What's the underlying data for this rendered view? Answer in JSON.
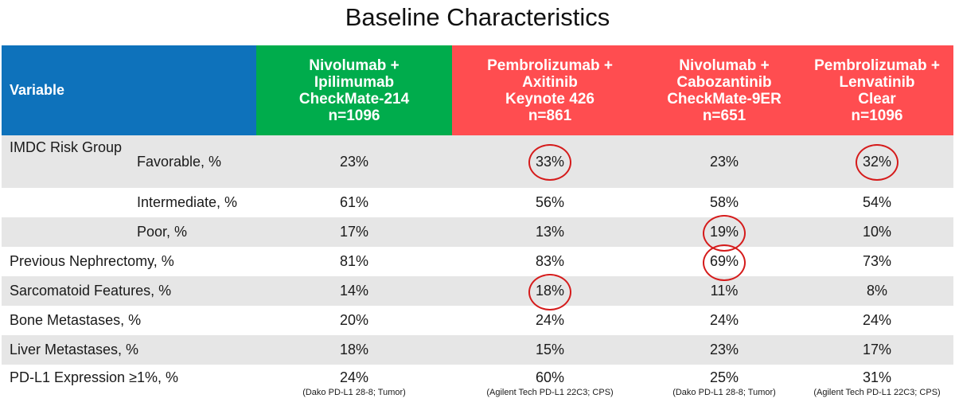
{
  "title": "Baseline Characteristics",
  "header": {
    "variable": "Variable",
    "columns": [
      {
        "line1": "Nivolumab +",
        "line2": "Ipilimumab",
        "line3": "CheckMate-214",
        "line4": "n=1096",
        "color": "#00ac4c"
      },
      {
        "line1": "Pembrolizumab +",
        "line2": "Axitinib",
        "line3": "Keynote 426",
        "line4": "n=861",
        "color": "#ff4d50"
      },
      {
        "line1": "Nivolumab +",
        "line2": "Cabozantinib",
        "line3": "CheckMate-9ER",
        "line4": "n=651",
        "color": "#ff4d50"
      },
      {
        "line1": "Pembrolizumab +",
        "line2": "Lenvatinib",
        "line3": "Clear",
        "line4": "n=1096",
        "color": "#ff4d50"
      }
    ],
    "variable_color": "#0e72bb"
  },
  "rows": [
    {
      "variable": "IMDC Risk Group",
      "sub": "Favorable, %",
      "values": [
        "23%",
        "33%",
        "23%",
        "32%"
      ],
      "circled": [
        false,
        true,
        false,
        true
      ]
    },
    {
      "variable": "",
      "sub": "Intermediate, %",
      "values": [
        "61%",
        "56%",
        "58%",
        "54%"
      ],
      "circled": [
        false,
        false,
        false,
        false
      ]
    },
    {
      "variable": "",
      "sub": "Poor, %",
      "values": [
        "17%",
        "13%",
        "19%",
        "10%"
      ],
      "circled": [
        false,
        false,
        true,
        false
      ]
    },
    {
      "variable": "Previous Nephrectomy, %",
      "sub": "",
      "values": [
        "81%",
        "83%",
        "69%",
        "73%"
      ],
      "circled": [
        false,
        false,
        true,
        false
      ]
    },
    {
      "variable": "Sarcomatoid Features, %",
      "sub": "",
      "values": [
        "14%",
        "18%",
        "11%",
        "8%"
      ],
      "circled": [
        false,
        true,
        false,
        false
      ]
    },
    {
      "variable": "Bone Metastases, %",
      "sub": "",
      "values": [
        "20%",
        "24%",
        "24%",
        "24%"
      ],
      "circled": [
        false,
        false,
        false,
        false
      ]
    },
    {
      "variable": "Liver Metastases, %",
      "sub": "",
      "values": [
        "18%",
        "15%",
        "23%",
        "17%"
      ],
      "circled": [
        false,
        false,
        false,
        false
      ]
    },
    {
      "variable": "PD-L1 Expression ≥1%, %",
      "sub": "",
      "values": [
        "24%",
        "60%",
        "25%",
        "31%"
      ],
      "notes": [
        "(Dako PD-L1 28-8; Tumor)",
        "(Agilent Tech PD-L1 22C3; CPS)",
        "(Dako PD-L1 28-8; Tumor)",
        "(Agilent Tech PD-L1 22C3; CPS)"
      ],
      "circled": [
        false,
        false,
        false,
        false
      ]
    }
  ],
  "highlight_color": "#d51b1b",
  "shade_color": "#e6e6e6"
}
